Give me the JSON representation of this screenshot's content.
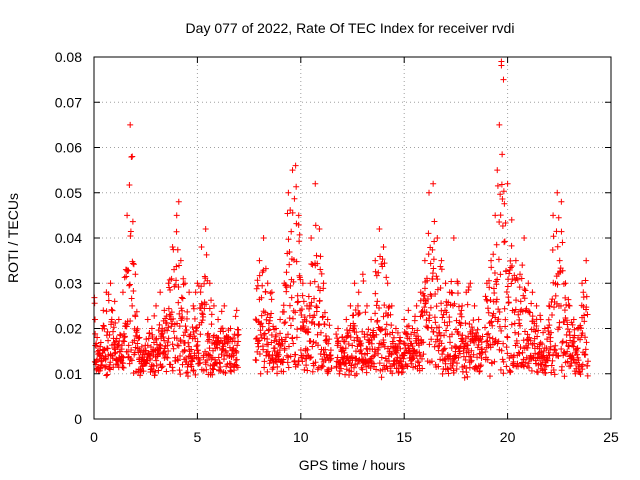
{
  "chart_data": {
    "type": "scatter",
    "title": "Day 077 of 2022, Rate Of TEC Index for receiver rvdi",
    "xlabel": "GPS time / hours",
    "ylabel": "ROTI / TECUs",
    "xlim": [
      0,
      25
    ],
    "ylim": [
      0,
      0.08
    ],
    "x_ticks": [
      "0",
      "5",
      "10",
      "15",
      "20",
      "25"
    ],
    "y_ticks": [
      "0",
      "0.01",
      "0.02",
      "0.03",
      "0.04",
      "0.05",
      "0.06",
      "0.07",
      "0.08"
    ],
    "grid": true,
    "marker": "+",
    "color": "#ff0000",
    "data_gaps_hours": [
      [
        7.0,
        7.8
      ],
      [
        11.5,
        11.7
      ],
      [
        18.8,
        18.9
      ]
    ],
    "series": [
      {
        "x": [
          0.05,
          0.15,
          0.3,
          0.45,
          0.6,
          0.8,
          1.0,
          1.2,
          1.4,
          1.6,
          1.75,
          1.85,
          2.0,
          2.2,
          2.4,
          2.6,
          2.8,
          3.0,
          3.2,
          3.4,
          3.6,
          3.8,
          4.0,
          4.1,
          4.2,
          4.4,
          4.6,
          4.8,
          5.0,
          5.2,
          5.4,
          5.6,
          5.8,
          6.0,
          6.3,
          6.6,
          6.9,
          8.0,
          8.2,
          8.4,
          8.6,
          8.8,
          9.0,
          9.2,
          9.4,
          9.6,
          9.75,
          9.9,
          10.1,
          10.3,
          10.5,
          10.7,
          10.9,
          11.1,
          11.3,
          11.8,
          12.0,
          12.2,
          12.4,
          12.6,
          12.8,
          13.0,
          13.2,
          13.4,
          13.6,
          13.8,
          14.0,
          14.2,
          14.4,
          14.6,
          14.8,
          15.0,
          15.2,
          15.4,
          15.6,
          15.8,
          16.0,
          16.2,
          16.4,
          16.6,
          16.8,
          17.0,
          17.2,
          17.4,
          17.6,
          17.8,
          18.0,
          18.2,
          18.4,
          18.6,
          19.0,
          19.2,
          19.4,
          19.5,
          19.6,
          19.7,
          19.8,
          20.0,
          20.2,
          20.4,
          20.6,
          20.8,
          21.0,
          21.2,
          21.4,
          21.6,
          21.8,
          22.0,
          22.2,
          22.4,
          22.6,
          22.8,
          23.0,
          23.2,
          23.4,
          23.6,
          23.8
        ],
        "y": [
          0.022,
          0.018,
          0.016,
          0.024,
          0.028,
          0.03,
          0.026,
          0.022,
          0.028,
          0.045,
          0.065,
          0.058,
          0.032,
          0.018,
          0.015,
          0.022,
          0.02,
          0.025,
          0.028,
          0.024,
          0.03,
          0.038,
          0.045,
          0.048,
          0.035,
          0.03,
          0.028,
          0.025,
          0.03,
          0.038,
          0.042,
          0.03,
          0.025,
          0.022,
          0.025,
          0.02,
          0.024,
          0.035,
          0.04,
          0.03,
          0.028,
          0.02,
          0.022,
          0.03,
          0.05,
          0.055,
          0.056,
          0.045,
          0.03,
          0.025,
          0.04,
          0.052,
          0.042,
          0.03,
          0.022,
          0.02,
          0.018,
          0.022,
          0.025,
          0.03,
          0.028,
          0.032,
          0.025,
          0.022,
          0.035,
          0.042,
          0.038,
          0.03,
          0.025,
          0.02,
          0.018,
          0.022,
          0.024,
          0.02,
          0.025,
          0.028,
          0.035,
          0.05,
          0.052,
          0.04,
          0.035,
          0.03,
          0.028,
          0.04,
          0.03,
          0.025,
          0.028,
          0.03,
          0.025,
          0.022,
          0.03,
          0.035,
          0.045,
          0.055,
          0.065,
          0.079,
          0.075,
          0.052,
          0.044,
          0.035,
          0.032,
          0.04,
          0.03,
          0.028,
          0.025,
          0.022,
          0.02,
          0.025,
          0.045,
          0.05,
          0.048,
          0.03,
          0.025,
          0.022,
          0.02,
          0.03,
          0.035
        ]
      }
    ]
  }
}
